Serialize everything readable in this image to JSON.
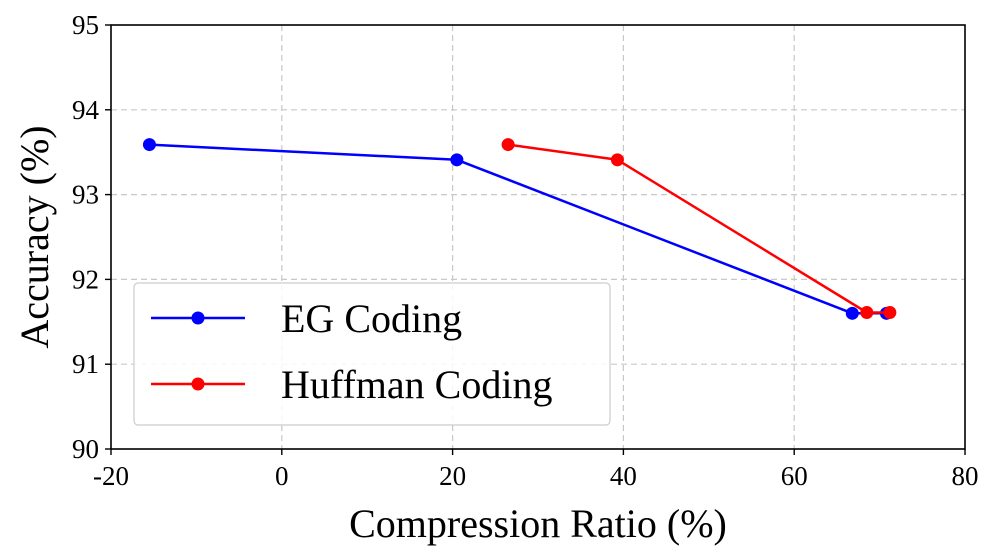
{
  "chart_data": {
    "type": "line",
    "title": "",
    "xlabel": "Compression Ratio (%)",
    "ylabel": "Accuracy (%)",
    "xlim": [
      -20,
      80
    ],
    "ylim": [
      90,
      95
    ],
    "xticks": [
      -20,
      0,
      20,
      40,
      60,
      80
    ],
    "yticks": [
      90,
      91,
      92,
      93,
      94,
      95
    ],
    "xtick_labels": [
      "-20",
      "0",
      "20",
      "40",
      "60",
      "80"
    ],
    "ytick_labels": [
      "90",
      "91",
      "92",
      "93",
      "94",
      "95"
    ],
    "grid": true,
    "legend_position": "lower-left",
    "series": [
      {
        "name": "EG Coding",
        "color": "#0000ff",
        "marker": "circle",
        "x": [
          -15.5,
          20.5,
          66.8,
          70.8
        ],
        "y": [
          93.59,
          93.41,
          91.6,
          91.6
        ]
      },
      {
        "name": "Huffman Coding",
        "color": "#ff0000",
        "marker": "circle",
        "x": [
          26.5,
          39.3,
          68.5,
          71.2
        ],
        "y": [
          93.59,
          93.41,
          91.61,
          91.61
        ]
      }
    ]
  }
}
